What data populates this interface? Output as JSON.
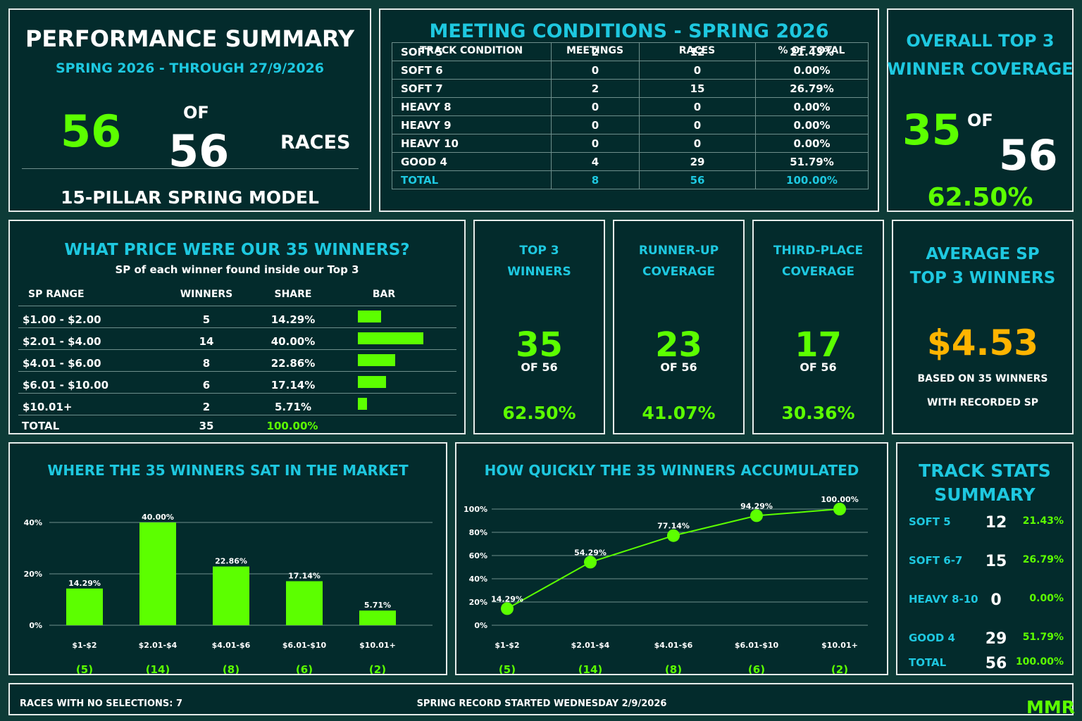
{
  "summary": {
    "title": "PERFORMANCE SUMMARY",
    "subtitle": "SPRING 2026 - THROUGH 27/9/2026",
    "count": "56",
    "of": "OF",
    "total": "56",
    "races": "RACES",
    "model": "15-PILLAR SPRING MODEL"
  },
  "meeting": {
    "title": "MEETING CONDITIONS - SPRING 2026",
    "headers": [
      "TRACK CONDITION",
      "MEETINGS",
      "RACES",
      "% OF TOTAL"
    ],
    "rows": [
      [
        "SOFT 5",
        "2",
        "12",
        "21.43%"
      ],
      [
        "SOFT 6",
        "0",
        "0",
        "0.00%"
      ],
      [
        "SOFT 7",
        "2",
        "15",
        "26.79%"
      ],
      [
        "HEAVY 8",
        "0",
        "0",
        "0.00%"
      ],
      [
        "HEAVY 9",
        "0",
        "0",
        "0.00%"
      ],
      [
        "HEAVY 10",
        "0",
        "0",
        "0.00%"
      ],
      [
        "GOOD 4",
        "4",
        "29",
        "51.79%"
      ]
    ],
    "total": [
      "TOTAL",
      "8",
      "56",
      "100.00%"
    ]
  },
  "coverage": {
    "title_line1": "OVERALL TOP 3",
    "title_line2": "WINNER COVERAGE",
    "count": "35",
    "of": "OF",
    "total": "56",
    "percent": "62.50%"
  },
  "price_table": {
    "title": "WHAT PRICE WERE OUR 35 WINNERS?",
    "subtitle": "SP of each winner found inside our Top 3",
    "headers": [
      "SP RANGE",
      "WINNERS",
      "SHARE",
      "BAR"
    ],
    "rows": [
      {
        "range": "$1.00 - $2.00",
        "winners": "5",
        "share": "14.29%",
        "value": 5
      },
      {
        "range": "$2.01 - $4.00",
        "winners": "14",
        "share": "40.00%",
        "value": 14
      },
      {
        "range": "$4.01 - $6.00",
        "winners": "8",
        "share": "22.86%",
        "value": 8
      },
      {
        "range": "$6.01 - $10.00",
        "winners": "6",
        "share": "17.14%",
        "value": 6
      },
      {
        "range": "$10.01+",
        "winners": "2",
        "share": "5.71%",
        "value": 2
      }
    ],
    "total": {
      "label": "TOTAL",
      "winners": "35",
      "share": "100.00%"
    }
  },
  "stat_cards": [
    {
      "title1": "TOP 3",
      "title2": "WINNERS",
      "value": "35",
      "of": "OF 56",
      "percent": "62.50%"
    },
    {
      "title1": "RUNNER-UP",
      "title2": "COVERAGE",
      "value": "23",
      "of": "OF 56",
      "percent": "41.07%"
    },
    {
      "title1": "THIRD-PLACE",
      "title2": "COVERAGE",
      "value": "17",
      "of": "OF 56",
      "percent": "30.36%"
    }
  ],
  "avg_sp": {
    "title1": "AVERAGE SP",
    "title2": "TOP 3 WINNERS",
    "value": "$4.53",
    "note1": "BASED ON 35 WINNERS",
    "note2": "WITH RECORDED SP"
  },
  "track_stats": {
    "title1": "TRACK STATS",
    "title2": "SUMMARY",
    "rows": [
      {
        "label": "SOFT 5",
        "races": "12",
        "pct": "21.43%"
      },
      {
        "label": "SOFT 6-7",
        "races": "15",
        "pct": "26.79%"
      },
      {
        "label": "HEAVY 8-10",
        "races": "0",
        "pct": "0.00%"
      },
      {
        "label": "GOOD 4",
        "races": "29",
        "pct": "51.79%"
      },
      {
        "label": "TOTAL",
        "races": "56",
        "pct": "100.00%"
      }
    ]
  },
  "footer": {
    "left": "RACES WITH NO SELECTIONS: 7",
    "center": "SPRING RECORD STARTED WEDNESDAY 2/9/2026",
    "brand": "MMR"
  },
  "colors": {
    "background": "#0d3b37",
    "panel": "#032b2c",
    "cyan": "#1ec8e0",
    "green": "#5cff00",
    "gold": "#ffb400"
  },
  "chart_data": [
    {
      "type": "bar",
      "title": "WHERE THE 35 WINNERS SAT IN THE MARKET",
      "categories": [
        "$1-$2",
        "$2.01-$4",
        "$4.01-$6",
        "$6.01-$10",
        "$10.01+"
      ],
      "counts": [
        "(5)",
        "(14)",
        "(8)",
        "(6)",
        "(2)"
      ],
      "values": [
        14.29,
        40.0,
        22.86,
        17.14,
        5.71
      ],
      "value_labels": [
        "14.29%",
        "40.00%",
        "22.86%",
        "17.14%",
        "5.71%"
      ],
      "ylim": [
        0,
        40
      ],
      "yticks": [
        0,
        20,
        40
      ],
      "ytick_labels": [
        "0%",
        "20%",
        "40%"
      ],
      "grid": true
    },
    {
      "type": "line",
      "title": "HOW QUICKLY THE 35 WINNERS ACCUMULATED",
      "categories": [
        "$1-$2",
        "$2.01-$4",
        "$4.01-$6",
        "$6.01-$10",
        "$10.01+"
      ],
      "counts": [
        "(5)",
        "(14)",
        "(8)",
        "(6)",
        "(2)"
      ],
      "values": [
        14.29,
        54.29,
        77.14,
        94.29,
        100.0
      ],
      "value_labels": [
        "14.29%",
        "54.29%",
        "77.14%",
        "94.29%",
        "100.00%"
      ],
      "ylim": [
        0,
        100
      ],
      "yticks": [
        0,
        20,
        40,
        60,
        80,
        100
      ],
      "ytick_labels": [
        "0%",
        "20%",
        "40%",
        "60%",
        "80%",
        "100%"
      ],
      "grid": true
    }
  ]
}
